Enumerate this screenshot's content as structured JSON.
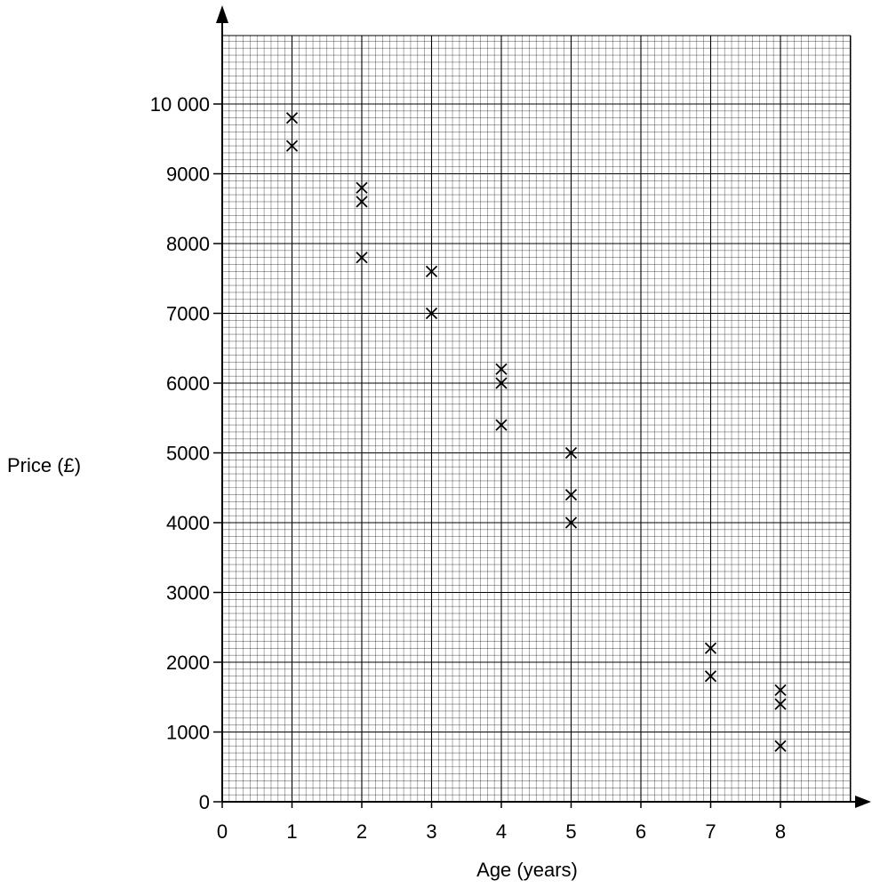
{
  "chart_data": {
    "type": "scatter",
    "xlabel": "Age (years)",
    "ylabel": "Price (£)",
    "x_ticks": [
      0,
      1,
      2,
      3,
      4,
      5,
      6,
      7,
      8
    ],
    "x_tick_labels": [
      "0",
      "1",
      "2",
      "3",
      "4",
      "5",
      "6",
      "7",
      "8"
    ],
    "y_ticks": [
      0,
      1000,
      2000,
      3000,
      4000,
      5000,
      6000,
      7000,
      8000,
      9000,
      10000
    ],
    "y_tick_labels": [
      "0",
      "1000",
      "2000",
      "3000",
      "4000",
      "5000",
      "6000",
      "7000",
      "8000",
      "9000",
      "10 000"
    ],
    "xlim": [
      0,
      9
    ],
    "ylim": [
      0,
      11000
    ],
    "grid": true,
    "marker": "cross",
    "points": [
      {
        "x": 1,
        "y": 9800
      },
      {
        "x": 1,
        "y": 9400
      },
      {
        "x": 2,
        "y": 8800
      },
      {
        "x": 2,
        "y": 8600
      },
      {
        "x": 2,
        "y": 7800
      },
      {
        "x": 3,
        "y": 7600
      },
      {
        "x": 3,
        "y": 7000
      },
      {
        "x": 4,
        "y": 6200
      },
      {
        "x": 4,
        "y": 6000
      },
      {
        "x": 4,
        "y": 5400
      },
      {
        "x": 5,
        "y": 5000
      },
      {
        "x": 5,
        "y": 4400
      },
      {
        "x": 5,
        "y": 4000
      },
      {
        "x": 7,
        "y": 2200
      },
      {
        "x": 7,
        "y": 1800
      },
      {
        "x": 8,
        "y": 1600
      },
      {
        "x": 8,
        "y": 1400
      },
      {
        "x": 8,
        "y": 800
      }
    ]
  }
}
